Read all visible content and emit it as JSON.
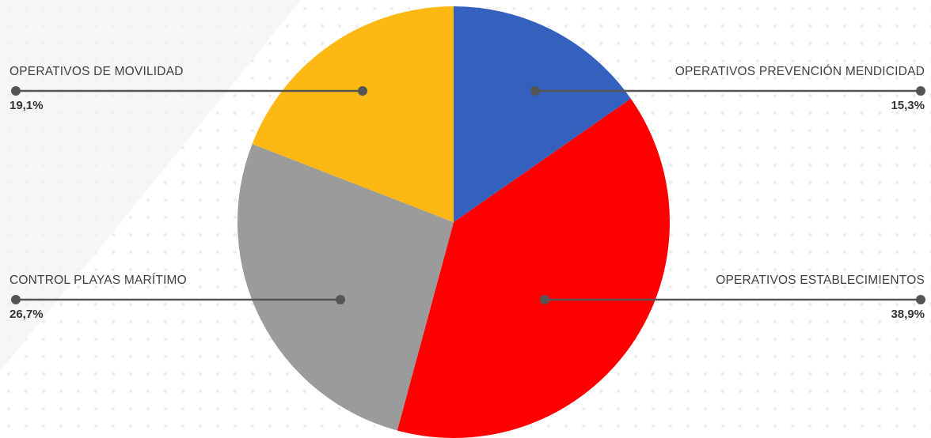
{
  "chart_data": {
    "type": "pie",
    "categories": [
      "OPERATIVOS PREVENCIÓN MENDICIDAD",
      "OPERATIVOS ESTABLECIMIENTOS",
      "CONTROL PLAYAS MARÍTIMO",
      "OPERATIVOS DE MOVILIDAD"
    ],
    "values": [
      15.3,
      38.9,
      26.7,
      19.1
    ],
    "value_labels": [
      "15,3%",
      "38,9%",
      "26,7%",
      "19,1%"
    ],
    "colors": [
      "#3561be",
      "#fe0000",
      "#9b9b9b",
      "#fdb813"
    ]
  }
}
